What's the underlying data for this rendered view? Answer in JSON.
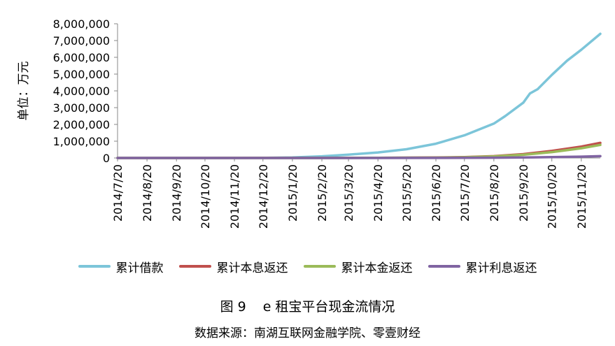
{
  "chart_data": {
    "type": "line",
    "ylabel": "单位：万元",
    "xlabel": "",
    "ylim": [
      0,
      8000000
    ],
    "yticks": [
      0,
      1000000,
      2000000,
      3000000,
      4000000,
      5000000,
      6000000,
      7000000,
      8000000
    ],
    "ytick_labels": [
      "0",
      "1,000,000",
      "2,000,000",
      "3,000,000",
      "4,000,000",
      "5,000,000",
      "6,000,000",
      "7,000,000",
      "8,000,000"
    ],
    "x_start": "2014-07-20",
    "x_end": "2015-12-10",
    "xtick_labels": [
      "2014/7/20",
      "2014/8/20",
      "2014/9/20",
      "2014/10/20",
      "2014/11/20",
      "2014/12/20",
      "2015/1/20",
      "2015/2/20",
      "2015/3/20",
      "2015/4/20",
      "2015/5/20",
      "2015/6/20",
      "2015/7/20",
      "2015/8/20",
      "2015/9/20",
      "2015/10/20",
      "2015/11/20"
    ],
    "grid": false,
    "legend_position": "bottom",
    "series": [
      {
        "name": "累计借款",
        "color": "#7cc5d9",
        "x": [
          "2014-07-20",
          "2014-10-20",
          "2014-12-20",
          "2015-01-20",
          "2015-02-20",
          "2015-03-20",
          "2015-04-20",
          "2015-05-20",
          "2015-06-20",
          "2015-07-20",
          "2015-08-20",
          "2015-09-01",
          "2015-09-20",
          "2015-09-27",
          "2015-10-05",
          "2015-10-20",
          "2015-11-05",
          "2015-11-20",
          "2015-12-10"
        ],
        "values": [
          0,
          2000,
          10000,
          30000,
          100000,
          200000,
          330000,
          520000,
          850000,
          1350000,
          2050000,
          2500000,
          3300000,
          3850000,
          4100000,
          4950000,
          5800000,
          6450000,
          7400000
        ]
      },
      {
        "name": "累计本息返还",
        "color": "#c0504d",
        "x": [
          "2014-07-20",
          "2015-02-20",
          "2015-04-20",
          "2015-06-20",
          "2015-07-20",
          "2015-08-20",
          "2015-09-20",
          "2015-10-20",
          "2015-11-20",
          "2015-12-10"
        ],
        "values": [
          0,
          3000,
          12000,
          30000,
          55000,
          110000,
          230000,
          420000,
          680000,
          900000
        ]
      },
      {
        "name": "累计本金返还",
        "color": "#9bbb59",
        "x": [
          "2014-07-20",
          "2015-02-20",
          "2015-04-20",
          "2015-06-20",
          "2015-07-20",
          "2015-08-20",
          "2015-09-20",
          "2015-10-20",
          "2015-11-20",
          "2015-12-10"
        ],
        "values": [
          0,
          2000,
          8000,
          22000,
          42000,
          90000,
          190000,
          350000,
          580000,
          780000
        ]
      },
      {
        "name": "累计利息返还",
        "color": "#8064a2",
        "x": [
          "2014-07-20",
          "2015-03-20",
          "2015-06-20",
          "2015-08-20",
          "2015-09-20",
          "2015-10-20",
          "2015-11-20",
          "2015-12-10"
        ],
        "values": [
          0,
          2000,
          6000,
          16000,
          30000,
          50000,
          80000,
          110000
        ]
      }
    ]
  },
  "caption": {
    "figure_number": "图 9",
    "title": "e 租宝平台现金流情况"
  },
  "source_note": "数据来源：南湖互联网金融学院、零壹财经"
}
